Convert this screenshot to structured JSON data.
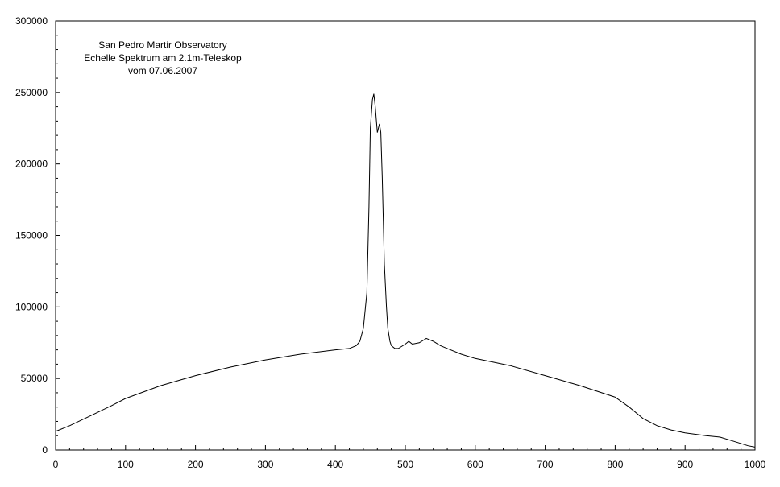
{
  "chart_data": {
    "type": "line",
    "title_lines": [
      "San Pedro Martir Observatory",
      "Echelle Spektrum am 2.1m-Teleskop",
      "vom 07.06.2007"
    ],
    "xlabel": "",
    "ylabel": "",
    "xlim": [
      0,
      1000
    ],
    "ylim": [
      0,
      300000
    ],
    "x_ticks": [
      0,
      100,
      200,
      300,
      400,
      500,
      600,
      700,
      800,
      900,
      1000
    ],
    "y_ticks": [
      0,
      50000,
      100000,
      150000,
      200000,
      250000,
      300000
    ],
    "x_tick_labels": [
      "0",
      "100",
      "200",
      "300",
      "400",
      "500",
      "600",
      "700",
      "800",
      "900",
      "1000"
    ],
    "y_tick_labels": [
      "0",
      "50000",
      "100000",
      "150000",
      "200000",
      "250000",
      "300000"
    ],
    "grid": false,
    "line_color": "#000000",
    "series": [
      {
        "x": [
          0,
          20,
          50,
          80,
          100,
          150,
          200,
          250,
          300,
          350,
          400,
          420,
          430,
          435,
          440,
          445,
          448,
          450,
          453,
          455,
          457,
          460,
          463,
          465,
          467,
          470,
          473,
          475,
          478,
          480,
          485,
          490,
          500,
          505,
          510,
          520,
          530,
          540,
          550,
          560,
          580,
          600,
          650,
          700,
          750,
          800,
          820,
          840,
          860,
          880,
          900,
          930,
          950,
          970,
          990,
          1000
        ],
        "y": [
          13000,
          17000,
          24000,
          31000,
          36000,
          45000,
          52000,
          58000,
          63000,
          67000,
          70000,
          71000,
          73000,
          76000,
          85000,
          110000,
          170000,
          225000,
          245000,
          249000,
          240000,
          222000,
          228000,
          222000,
          190000,
          130000,
          100000,
          85000,
          76000,
          73000,
          71000,
          71000,
          74000,
          76000,
          74000,
          75000,
          78000,
          76000,
          73000,
          71000,
          67000,
          64000,
          59000,
          52000,
          45000,
          37000,
          30000,
          22000,
          17000,
          14000,
          12000,
          10000,
          9000,
          6000,
          3000,
          2000
        ]
      }
    ]
  }
}
